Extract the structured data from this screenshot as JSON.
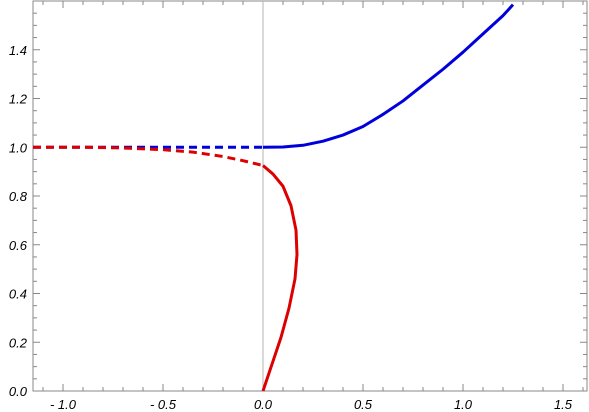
{
  "chart_data": {
    "type": "line",
    "title": "",
    "xlabel": "",
    "ylabel": "",
    "xlim": [
      -1.15,
      1.62
    ],
    "ylim": [
      0.0,
      1.6
    ],
    "x_ticks": [
      -1.0,
      -0.5,
      0.0,
      0.5,
      1.0,
      1.5
    ],
    "x_tick_labels": [
      "- 1.0",
      "- 0.5",
      "0.0",
      "0.5",
      "1.0",
      "1.5"
    ],
    "y_ticks": [
      0.0,
      0.2,
      0.4,
      0.6,
      0.8,
      1.0,
      1.2,
      1.4
    ],
    "y_tick_labels": [
      "0.0",
      "0.2",
      "0.4",
      "0.6",
      "0.8",
      "1.0",
      "1.2",
      "1.4"
    ],
    "grid": false,
    "vertical_reference_line_x": 0.0,
    "series": [
      {
        "color": "#0000dd",
        "style": "dashed",
        "points": [
          [
            -1.15,
            1.0
          ],
          [
            -0.8,
            1.0
          ],
          [
            -0.5,
            1.0
          ],
          [
            -0.3,
            1.0
          ],
          [
            -0.1,
            1.0
          ],
          [
            0.0,
            1.0
          ]
        ]
      },
      {
        "color": "#0000dd",
        "style": "solid",
        "points": [
          [
            0.0,
            1.0
          ],
          [
            0.1,
            1.001
          ],
          [
            0.2,
            1.008
          ],
          [
            0.3,
            1.025
          ],
          [
            0.4,
            1.05
          ],
          [
            0.5,
            1.085
          ],
          [
            0.6,
            1.135
          ],
          [
            0.7,
            1.19
          ],
          [
            0.8,
            1.255
          ],
          [
            0.9,
            1.32
          ],
          [
            1.0,
            1.39
          ],
          [
            1.1,
            1.465
          ],
          [
            1.2,
            1.54
          ],
          [
            1.25,
            1.585
          ]
        ]
      },
      {
        "color": "#dd0000",
        "style": "dashed",
        "points": [
          [
            -1.15,
            1.0
          ],
          [
            -0.9,
            1.0
          ],
          [
            -0.7,
            0.997
          ],
          [
            -0.5,
            0.99
          ],
          [
            -0.35,
            0.98
          ],
          [
            -0.2,
            0.962
          ],
          [
            -0.1,
            0.945
          ],
          [
            0.0,
            0.925
          ]
        ]
      },
      {
        "color": "#dd0000",
        "style": "solid",
        "points": [
          [
            0.0,
            0.925
          ],
          [
            0.05,
            0.89
          ],
          [
            0.1,
            0.84
          ],
          [
            0.14,
            0.76
          ],
          [
            0.165,
            0.66
          ],
          [
            0.17,
            0.56
          ],
          [
            0.16,
            0.46
          ],
          [
            0.13,
            0.34
          ],
          [
            0.09,
            0.22
          ],
          [
            0.045,
            0.11
          ],
          [
            0.0,
            0.0
          ]
        ]
      }
    ]
  }
}
